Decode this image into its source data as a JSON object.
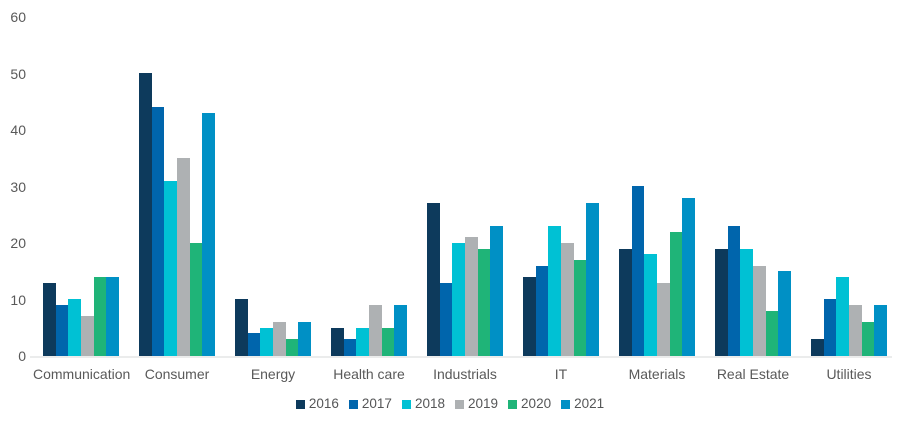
{
  "chart_data": {
    "type": "bar",
    "title": "",
    "xlabel": "",
    "ylabel": "",
    "categories": [
      "Communication",
      "Consumer",
      "Energy",
      "Health care",
      "Industrials",
      "IT",
      "Materials",
      "Real Estate",
      "Utilities"
    ],
    "series": [
      {
        "name": "2016",
        "color": "#0d3a5c",
        "values": [
          13,
          50,
          10,
          5,
          27,
          14,
          19,
          19,
          3
        ]
      },
      {
        "name": "2017",
        "color": "#0065ac",
        "values": [
          9,
          44,
          4,
          3,
          13,
          16,
          30,
          23,
          10
        ]
      },
      {
        "name": "2018",
        "color": "#00c1d4",
        "values": [
          10,
          31,
          5,
          5,
          20,
          23,
          18,
          19,
          14
        ]
      },
      {
        "name": "2019",
        "color": "#aeb1b3",
        "values": [
          7,
          35,
          6,
          9,
          21,
          20,
          13,
          16,
          9
        ]
      },
      {
        "name": "2020",
        "color": "#1fb478",
        "values": [
          14,
          20,
          3,
          5,
          19,
          17,
          22,
          8,
          6
        ]
      },
      {
        "name": "2021",
        "color": "#0090c5",
        "values": [
          14,
          43,
          6,
          9,
          23,
          27,
          28,
          15,
          9
        ]
      }
    ],
    "ylim": [
      0,
      60
    ],
    "yticks": [
      0,
      10,
      20,
      30,
      40,
      50,
      60
    ],
    "grid": false,
    "legend_position": "bottom",
    "axis_text_color": "#595959",
    "baseline_color": "#ebecec"
  }
}
